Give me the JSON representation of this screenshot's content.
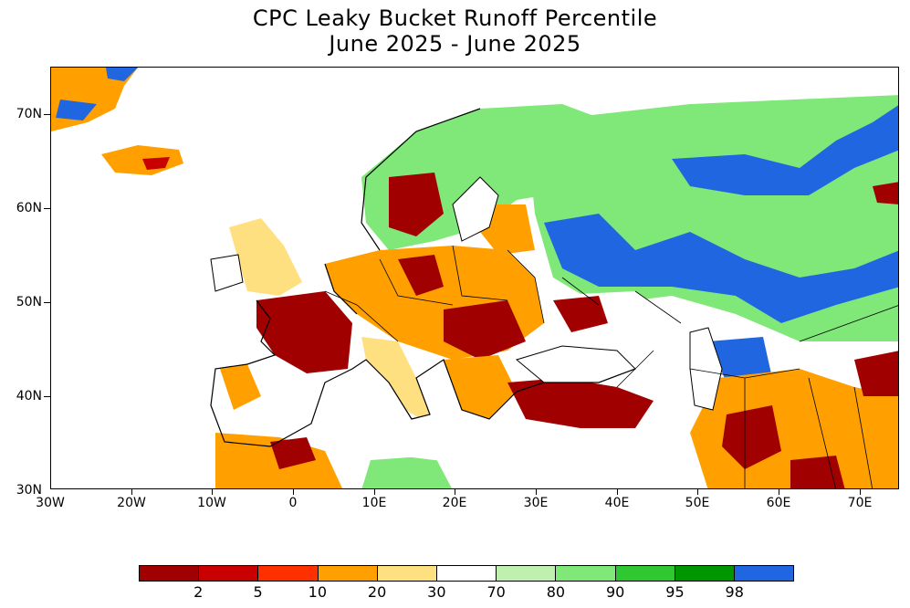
{
  "title": {
    "line1": "CPC Leaky Bucket Runoff Percentile",
    "line2": "June 2025 - June 2025"
  },
  "axes": {
    "lat_labels": [
      "70N",
      "60N",
      "50N",
      "40N",
      "30N"
    ],
    "lon_labels": [
      "30W",
      "20W",
      "10W",
      "0",
      "10E",
      "20E",
      "30E",
      "40E",
      "50E",
      "60E",
      "70E"
    ],
    "lat_range": [
      30,
      75
    ],
    "lon_range": [
      -30,
      75
    ]
  },
  "legend": {
    "colors": [
      "#a00000",
      "#c80000",
      "#ff3000",
      "#ffa000",
      "#ffe080",
      "#ffffff",
      "#c0f0b0",
      "#80e878",
      "#30c830",
      "#009600",
      "#2066e0"
    ],
    "labels": [
      "2",
      "5",
      "10",
      "20",
      "30",
      "70",
      "80",
      "90",
      "95",
      "98"
    ]
  },
  "map": {
    "background_color": "#ffffff",
    "outline_color": "#000000"
  }
}
